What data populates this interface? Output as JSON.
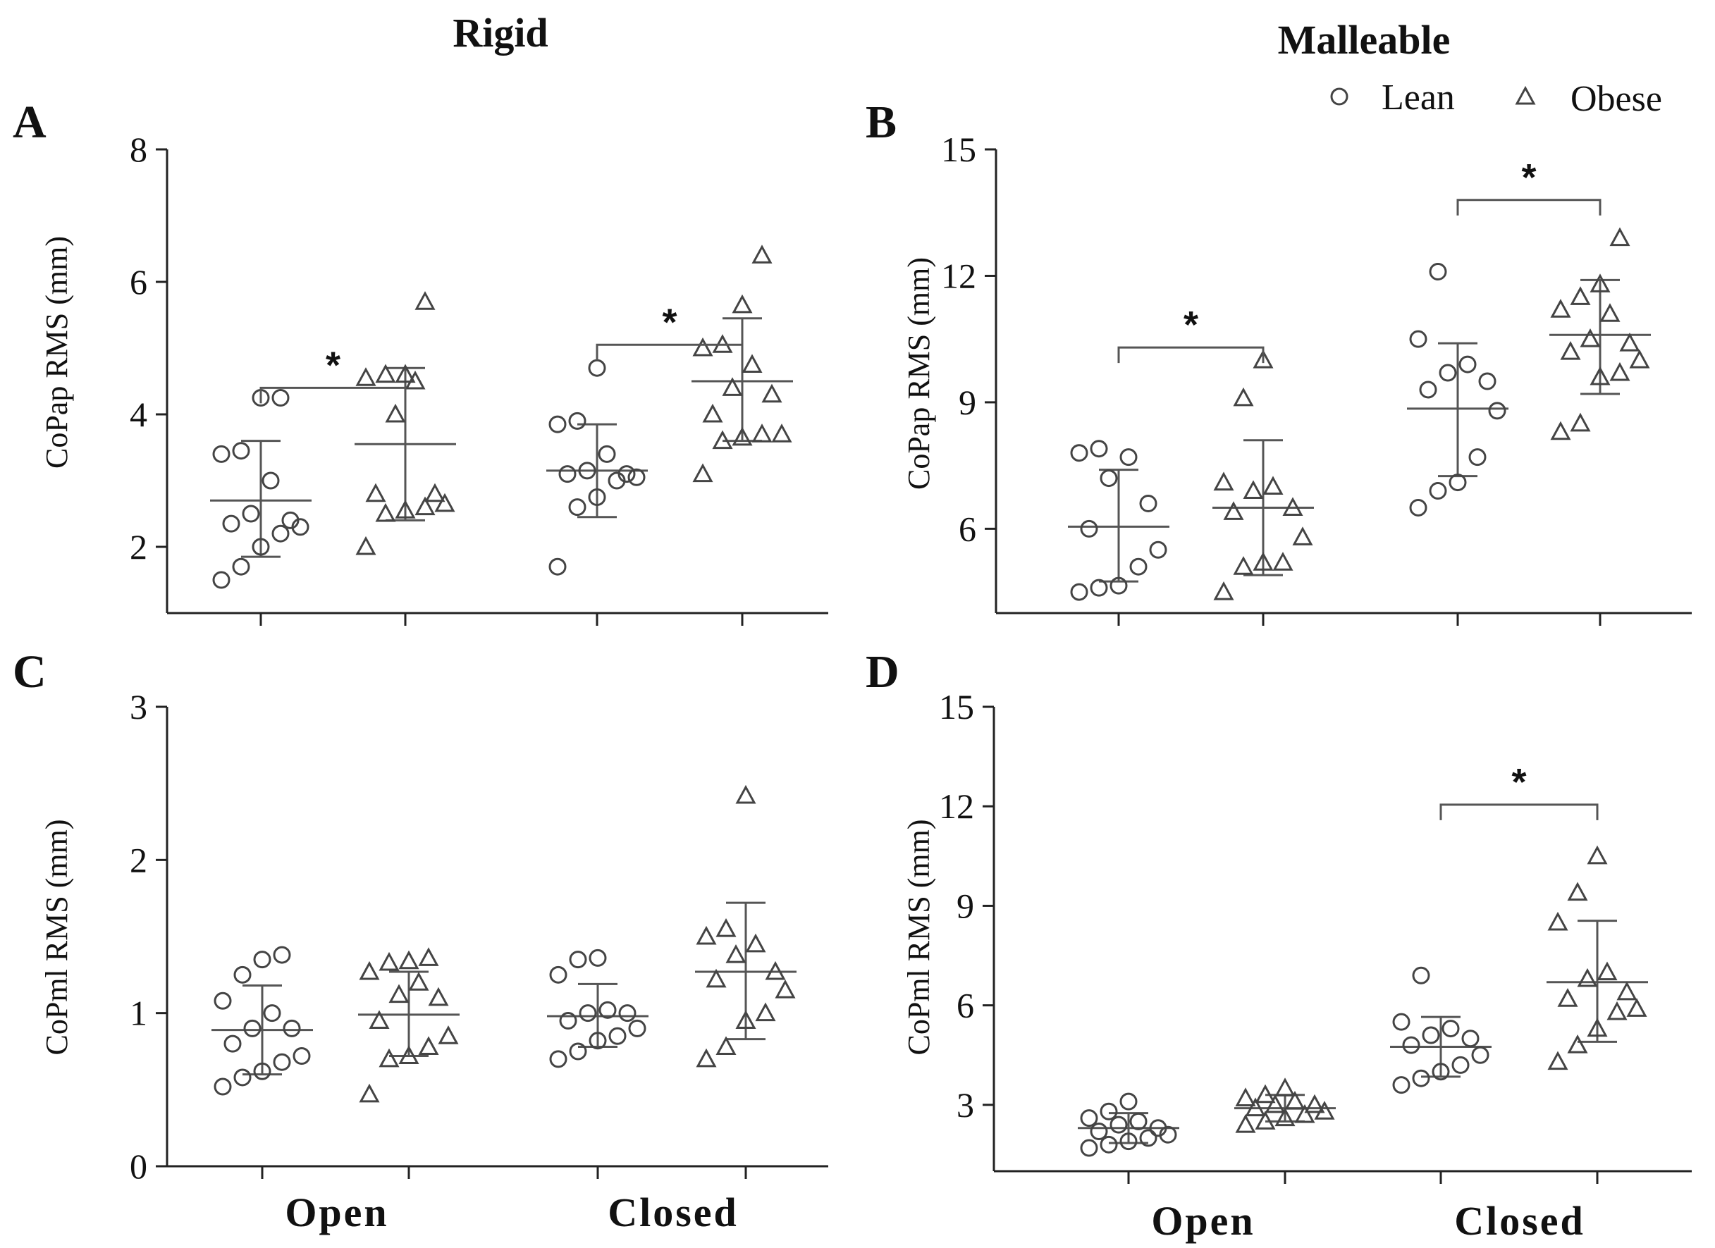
{
  "column_titles": [
    "Rigid",
    "Malleable"
  ],
  "legend": [
    {
      "label": "Lean",
      "marker": "circle"
    },
    {
      "label": "Obese",
      "marker": "triangle"
    }
  ],
  "x_categories": [
    "Open",
    "Closed"
  ],
  "chart_data": [
    {
      "panel": "A",
      "type": "scatter",
      "condition": "Rigid",
      "ylabel": "CoPap RMS (mm)",
      "ylim": [
        1,
        8
      ],
      "yticks": [
        2,
        4,
        6,
        8
      ],
      "groups": [
        {
          "category": "Open",
          "series": "Lean",
          "mean": 2.7,
          "sd_low": 1.85,
          "sd_high": 3.6,
          "points": [
            1.5,
            1.7,
            2.0,
            2.2,
            2.3,
            2.35,
            2.4,
            2.5,
            3.0,
            3.4,
            3.45,
            4.25,
            4.25
          ]
        },
        {
          "category": "Open",
          "series": "Obese",
          "mean": 3.55,
          "sd_low": 2.4,
          "sd_high": 4.7,
          "points": [
            2.0,
            2.5,
            2.55,
            2.6,
            2.65,
            2.8,
            2.8,
            4.0,
            4.5,
            4.55,
            4.6,
            4.6,
            5.7
          ]
        },
        {
          "category": "Closed",
          "series": "Lean",
          "mean": 3.15,
          "sd_low": 2.45,
          "sd_high": 3.85,
          "points": [
            1.7,
            2.6,
            2.75,
            3.0,
            3.05,
            3.1,
            3.1,
            3.15,
            3.4,
            3.85,
            3.9,
            4.7
          ]
        },
        {
          "category": "Closed",
          "series": "Obese",
          "mean": 4.5,
          "sd_low": 3.6,
          "sd_high": 5.45,
          "points": [
            3.1,
            3.6,
            3.65,
            3.7,
            3.7,
            4.0,
            4.3,
            4.4,
            4.75,
            5.0,
            5.05,
            5.65,
            6.4
          ]
        }
      ],
      "significance": [
        {
          "category": "Open",
          "label": "*",
          "y": 4.4
        },
        {
          "category": "Closed",
          "label": "*",
          "y": 5.05
        }
      ]
    },
    {
      "panel": "B",
      "type": "scatter",
      "condition": "Malleable",
      "ylabel": "CoPap RMS (mm)",
      "ylim": [
        4,
        15
      ],
      "yticks": [
        6,
        9,
        12,
        15
      ],
      "groups": [
        {
          "category": "Open",
          "series": "Lean",
          "mean": 6.05,
          "sd_low": 4.75,
          "sd_high": 7.4,
          "points": [
            4.5,
            4.6,
            4.65,
            5.1,
            5.5,
            6.0,
            6.6,
            7.2,
            7.7,
            7.8,
            7.9
          ]
        },
        {
          "category": "Open",
          "series": "Obese",
          "mean": 6.5,
          "sd_low": 4.9,
          "sd_high": 8.1,
          "points": [
            4.5,
            5.1,
            5.2,
            5.2,
            5.8,
            6.4,
            6.5,
            6.9,
            7.0,
            7.1,
            9.1,
            10.0
          ]
        },
        {
          "category": "Closed",
          "series": "Lean",
          "mean": 8.85,
          "sd_low": 7.25,
          "sd_high": 10.4,
          "points": [
            6.5,
            6.9,
            7.1,
            7.7,
            8.8,
            9.3,
            9.5,
            9.7,
            9.9,
            10.5,
            12.1
          ]
        },
        {
          "category": "Closed",
          "series": "Obese",
          "mean": 10.6,
          "sd_low": 9.2,
          "sd_high": 11.9,
          "points": [
            8.3,
            8.5,
            9.6,
            9.7,
            10.0,
            10.2,
            10.4,
            10.5,
            11.1,
            11.2,
            11.5,
            11.8,
            12.9
          ]
        }
      ],
      "significance": [
        {
          "category": "Open",
          "label": "*",
          "y": 10.3
        },
        {
          "category": "Closed",
          "label": "*",
          "y": 13.8
        }
      ]
    },
    {
      "panel": "C",
      "type": "scatter",
      "condition": "Rigid",
      "ylabel": "CoPml RMS (mm)",
      "ylim": [
        0,
        3
      ],
      "yticks": [
        0,
        1,
        2,
        3
      ],
      "groups": [
        {
          "category": "Open",
          "series": "Lean",
          "mean": 0.89,
          "sd_low": 0.6,
          "sd_high": 1.18,
          "points": [
            0.52,
            0.58,
            0.62,
            0.68,
            0.72,
            0.8,
            0.9,
            0.9,
            1.0,
            1.08,
            1.25,
            1.35,
            1.38
          ]
        },
        {
          "category": "Open",
          "series": "Obese",
          "mean": 0.99,
          "sd_low": 0.72,
          "sd_high": 1.27,
          "points": [
            0.47,
            0.7,
            0.72,
            0.78,
            0.85,
            0.95,
            1.1,
            1.12,
            1.2,
            1.27,
            1.33,
            1.34,
            1.36
          ]
        },
        {
          "category": "Closed",
          "series": "Lean",
          "mean": 0.98,
          "sd_low": 0.78,
          "sd_high": 1.19,
          "points": [
            0.7,
            0.75,
            0.82,
            0.85,
            0.9,
            0.95,
            1.0,
            1.0,
            1.02,
            1.25,
            1.35,
            1.36
          ]
        },
        {
          "category": "Closed",
          "series": "Obese",
          "mean": 1.27,
          "sd_low": 0.83,
          "sd_high": 1.72,
          "points": [
            0.7,
            0.78,
            0.95,
            1.0,
            1.15,
            1.22,
            1.27,
            1.38,
            1.45,
            1.5,
            1.55,
            2.42
          ]
        }
      ],
      "significance": []
    },
    {
      "panel": "D",
      "type": "scatter",
      "condition": "Malleable",
      "ylabel": "CoPml RMS (mm)",
      "ylim": [
        1,
        15
      ],
      "yticks": [
        3,
        6,
        9,
        12,
        15
      ],
      "groups": [
        {
          "category": "Open",
          "series": "Lean",
          "mean": 2.3,
          "sd_low": 1.85,
          "sd_high": 2.75,
          "points": [
            1.7,
            1.8,
            1.9,
            2.0,
            2.1,
            2.2,
            2.3,
            2.4,
            2.5,
            2.6,
            2.8,
            3.1
          ]
        },
        {
          "category": "Open",
          "series": "Obese",
          "mean": 2.9,
          "sd_low": 2.5,
          "sd_high": 3.3,
          "points": [
            2.4,
            2.5,
            2.6,
            2.7,
            2.8,
            2.9,
            3.0,
            3.0,
            3.1,
            3.2,
            3.3,
            3.5
          ]
        },
        {
          "category": "Closed",
          "series": "Lean",
          "mean": 4.75,
          "sd_low": 3.85,
          "sd_high": 5.65,
          "points": [
            3.6,
            3.8,
            4.0,
            4.2,
            4.5,
            4.8,
            5.0,
            5.1,
            5.3,
            5.5,
            6.9
          ]
        },
        {
          "category": "Closed",
          "series": "Obese",
          "mean": 6.7,
          "sd_low": 4.9,
          "sd_high": 8.55,
          "points": [
            4.3,
            4.8,
            5.3,
            5.8,
            5.9,
            6.2,
            6.4,
            6.8,
            7.0,
            8.5,
            9.4,
            10.5
          ]
        }
      ],
      "significance": [
        {
          "category": "Closed",
          "label": "*",
          "y": 12.05
        }
      ]
    }
  ]
}
